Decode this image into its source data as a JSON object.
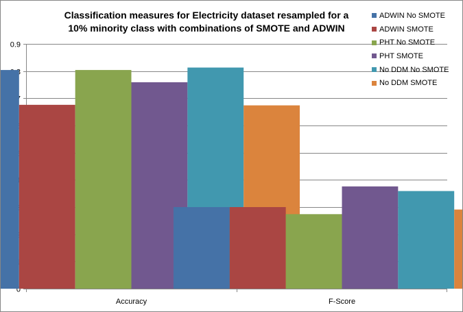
{
  "chart_data": {
    "type": "bar",
    "title": "Classification measures for Electricity dataset resampled for a\n10% minority class with combinations of SMOTE and ADWIN",
    "xlabel": "",
    "ylabel": "",
    "categories": [
      "Accuracy",
      "F-Score"
    ],
    "ylim": [
      0,
      0.9
    ],
    "yticks": [
      "0",
      "0.1",
      "0.2",
      "0.3",
      "0.4",
      "0.5",
      "0.6",
      "0.7",
      "0.8",
      "0.9"
    ],
    "grid": true,
    "legend_position": "right",
    "series": [
      {
        "name": "ADWIN No SMOTE",
        "color": "#4572A7",
        "values": [
          0.804,
          0.3
        ]
      },
      {
        "name": "ADWIN SMOTE",
        "color": "#AA4643",
        "values": [
          0.676,
          0.3
        ]
      },
      {
        "name": "PHT No SMOTE",
        "color": "#89A54E",
        "values": [
          0.804,
          0.274
        ]
      },
      {
        "name": "PHT SMOTE",
        "color": "#71588F",
        "values": [
          0.759,
          0.376
        ]
      },
      {
        "name": "No DDM No SMOTE",
        "color": "#4198AF",
        "values": [
          0.813,
          0.359
        ]
      },
      {
        "name": "No DDM SMOTE",
        "color": "#DB843D",
        "values": [
          0.674,
          0.291
        ]
      }
    ]
  }
}
